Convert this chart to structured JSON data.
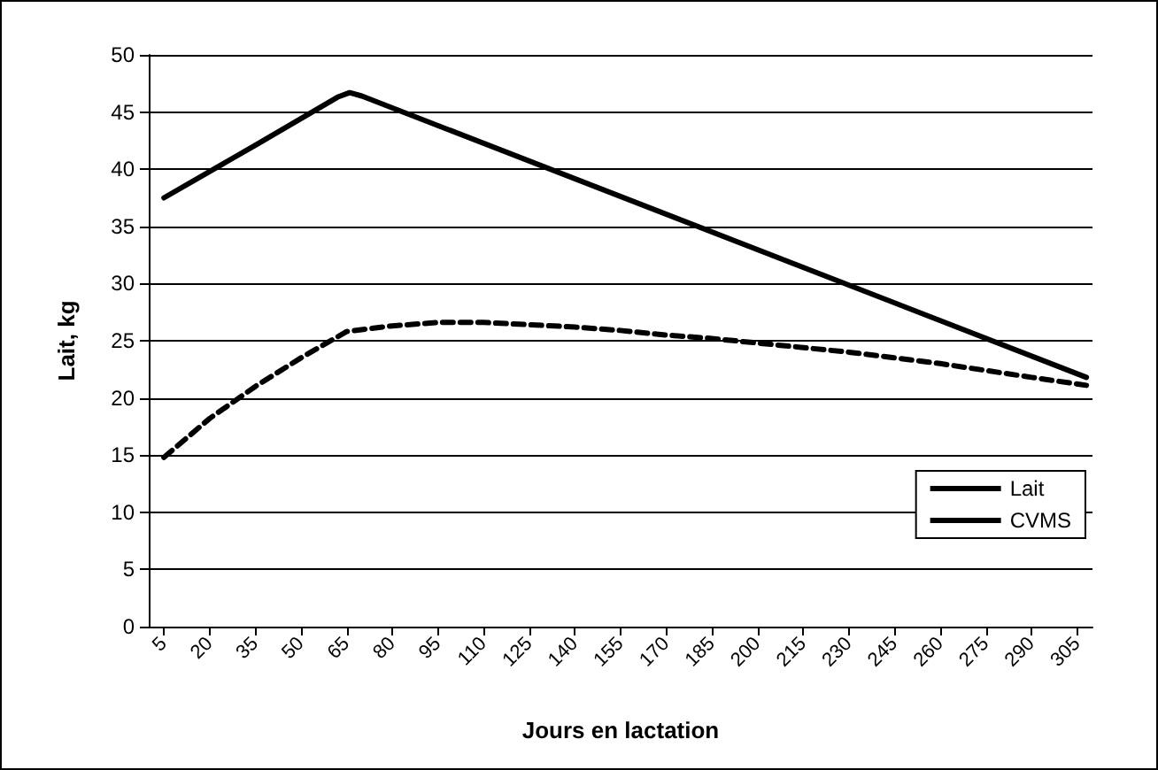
{
  "chart_data": {
    "type": "line",
    "xlabel": "Jours en lactation",
    "ylabel": "Lait, kg",
    "xlim": [
      0,
      310
    ],
    "xticks": [
      5,
      20,
      35,
      50,
      65,
      80,
      95,
      110,
      125,
      140,
      155,
      170,
      185,
      200,
      215,
      230,
      245,
      260,
      275,
      290,
      305
    ],
    "ylim": [
      0,
      50
    ],
    "yticks": [
      0,
      5,
      10,
      15,
      20,
      25,
      30,
      35,
      40,
      45,
      50
    ],
    "grid": "y",
    "legend": "right",
    "marker": "none",
    "series": [
      {
        "name": "Lait",
        "color": "#000000",
        "line_style": "solid",
        "x": [
          5,
          35,
          62,
          66,
          70,
          308
        ],
        "values": [
          37.5,
          42.1,
          46.3,
          46.7,
          46.4,
          21.8
        ]
      },
      {
        "name": "CVMS",
        "color": "#000000",
        "line_style": "dashed",
        "x": [
          5,
          20,
          35,
          50,
          65,
          80,
          95,
          110,
          125,
          140,
          155,
          170,
          185,
          200,
          215,
          230,
          245,
          260,
          275,
          290,
          308
        ],
        "values": [
          14.8,
          18.2,
          21,
          23.5,
          25.8,
          26.3,
          26.6,
          26.6,
          26.4,
          26.2,
          25.9,
          25.5,
          25.2,
          24.8,
          24.4,
          24,
          23.5,
          23,
          22.4,
          21.8,
          21.1
        ]
      }
    ]
  }
}
